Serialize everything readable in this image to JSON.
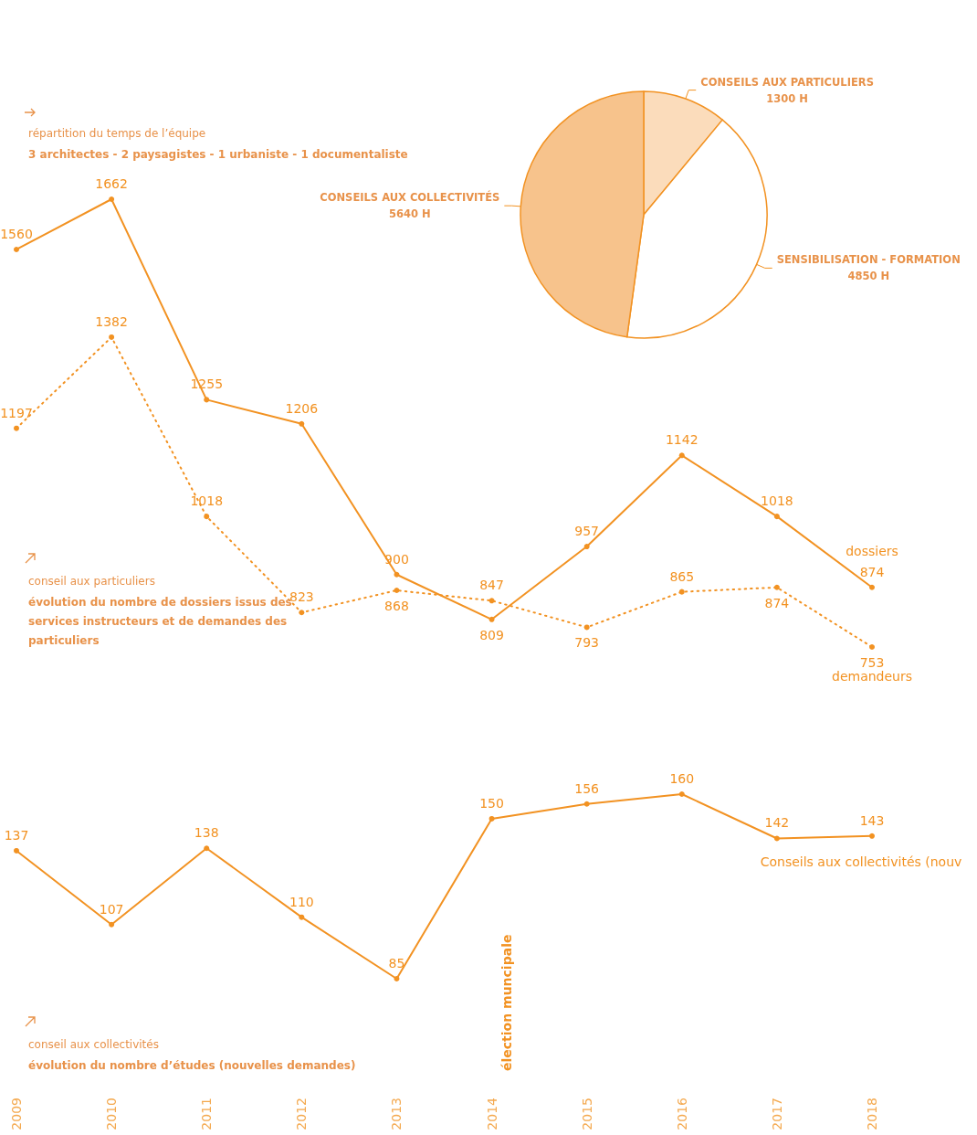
{
  "chart_data": [
    {
      "type": "pie",
      "title": "répartition du temps de l’équipe",
      "subtitle": "3 architectes - 2 paysagistes - 1 urbaniste - 1 documentaliste",
      "categories": [
        "CONSEILS AUX PARTICULIERS",
        "SENSIBILISATION - FORMATION",
        "CONSEILS AUX COLLECTIVITÉS"
      ],
      "values": [
        1300,
        4850,
        5640
      ],
      "value_labels": [
        "1300 H",
        "4850 H",
        "5640 H"
      ],
      "colors": [
        "#fbdcbb",
        "#ffffff",
        "#f7c38c"
      ]
    },
    {
      "type": "line",
      "title": "conseil aux particuliers",
      "subtitle": "évolution du nombre de dossiers issus des services instructeurs et de demandes des particuliers",
      "categories": [
        "2009",
        "2010",
        "2011",
        "2012",
        "2013",
        "2014",
        "2015",
        "2016",
        "2017",
        "2018"
      ],
      "series": [
        {
          "name": "dossiers",
          "color": "#f29222",
          "line_style": "solid",
          "values": [
            1560,
            1662,
            1255,
            1206,
            900,
            809,
            957,
            1142,
            1018,
            874
          ]
        },
        {
          "name": "demandeurs",
          "color": "#f29222",
          "line_style": "dotted",
          "values": [
            1197,
            1382,
            1018,
            823,
            868,
            847,
            793,
            865,
            874,
            753
          ]
        }
      ],
      "marker": "circle",
      "data_labels": true,
      "tick_labels": false
    },
    {
      "type": "line",
      "title": "conseil aux collectivités",
      "subtitle": "évolution du nombre d’études (nouvelles demandes)",
      "categories": [
        "2009",
        "2010",
        "2011",
        "2012",
        "2013",
        "2014",
        "2015",
        "2016",
        "2017",
        "2018"
      ],
      "series": [
        {
          "name": "Conseils aux collectivités (nouv",
          "color": "#f29222",
          "values": [
            137,
            107,
            138,
            110,
            85,
            150,
            156,
            160,
            142,
            143
          ]
        }
      ],
      "marker": "circle",
      "data_labels": true,
      "tick_labels": "x",
      "annotations": [
        "élection muncipale"
      ]
    }
  ]
}
